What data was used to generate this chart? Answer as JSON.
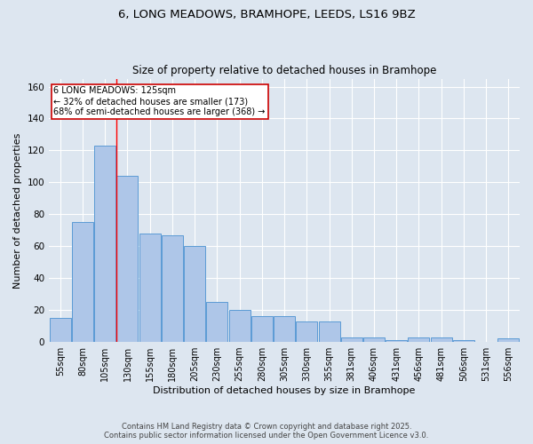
{
  "title_line1": "6, LONG MEADOWS, BRAMHOPE, LEEDS, LS16 9BZ",
  "title_line2": "Size of property relative to detached houses in Bramhope",
  "xlabel": "Distribution of detached houses by size in Bramhope",
  "ylabel": "Number of detached properties",
  "bar_labels": [
    "55sqm",
    "80sqm",
    "105sqm",
    "130sqm",
    "155sqm",
    "180sqm",
    "205sqm",
    "230sqm",
    "255sqm",
    "280sqm",
    "305sqm",
    "330sqm",
    "355sqm",
    "381sqm",
    "406sqm",
    "431sqm",
    "456sqm",
    "481sqm",
    "506sqm",
    "531sqm",
    "556sqm"
  ],
  "bar_values": [
    15,
    75,
    123,
    104,
    68,
    67,
    60,
    25,
    20,
    16,
    16,
    13,
    13,
    3,
    3,
    1,
    3,
    3,
    1,
    0,
    2
  ],
  "bar_color": "#aec6e8",
  "bar_edge_color": "#5b9bd5",
  "bg_color": "#dde6f0",
  "grid_color": "#ffffff",
  "red_line_x": 2.5,
  "annotation_text": "6 LONG MEADOWS: 125sqm\n← 32% of detached houses are smaller (173)\n68% of semi-detached houses are larger (368) →",
  "annotation_box_color": "#ffffff",
  "annotation_box_edge": "#cc0000",
  "ylim": [
    0,
    165
  ],
  "yticks": [
    0,
    20,
    40,
    60,
    80,
    100,
    120,
    140,
    160
  ],
  "footer_line1": "Contains HM Land Registry data © Crown copyright and database right 2025.",
  "footer_line2": "Contains public sector information licensed under the Open Government Licence v3.0."
}
